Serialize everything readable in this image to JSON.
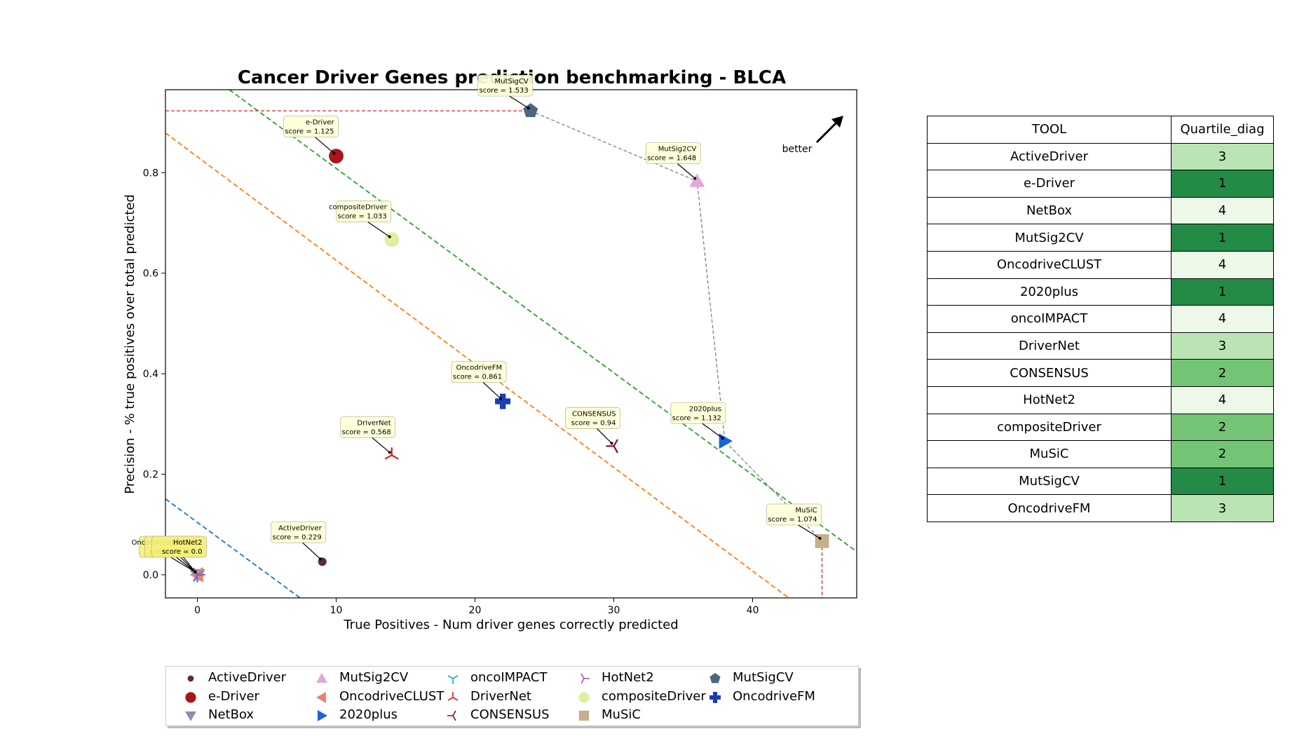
{
  "chart_data": {
    "type": "scatter",
    "title": "Cancer Driver Genes prediction benchmarking - BLCA",
    "xlabel": "True Positives - Num driver genes correctly predicted",
    "ylabel": "Precision - % true positives over total predicted",
    "xlim": [
      -2.3,
      47.5
    ],
    "ylim": [
      -0.046,
      0.965
    ],
    "xticks": [
      0,
      10,
      20,
      30,
      40
    ],
    "yticks": [
      0.0,
      0.2,
      0.4,
      0.6,
      0.8
    ],
    "better_label": "better",
    "grid": false,
    "legend_placement": "below plot",
    "points": [
      {
        "name": "ActiveDriver",
        "x": 9,
        "y": 0.026,
        "score_label": "score = 0.229",
        "marker": "circle-small",
        "color": "#5a2a46"
      },
      {
        "name": "e-Driver",
        "x": 10,
        "y": 0.833,
        "score_label": "score = 1.125",
        "marker": "circle",
        "color": "#a8161b"
      },
      {
        "name": "NetBox",
        "x": 0,
        "y": 0.0,
        "score_label": "score = 0.0",
        "marker": "triangle-down",
        "color": "#8c8fb0"
      },
      {
        "name": "MutSig2CV",
        "x": 36,
        "y": 0.783,
        "score_label": "score = 1.648",
        "marker": "triangle-up",
        "color": "#e6a6d9"
      },
      {
        "name": "OncodriveCLUST",
        "x": 0,
        "y": 0.0,
        "score_label": "score = 0.0",
        "marker": "triangle-left",
        "color": "#f08070"
      },
      {
        "name": "2020plus",
        "x": 38,
        "y": 0.266,
        "score_label": "score = 1.132",
        "marker": "triangle-right",
        "color": "#1864dc"
      },
      {
        "name": "oncoIMPACT",
        "x": 0,
        "y": 0.0,
        "score_label": "score = 0.0",
        "marker": "tri-down",
        "color": "#18b0b0"
      },
      {
        "name": "DriverNet",
        "x": 14,
        "y": 0.238,
        "score_label": "score = 0.568",
        "marker": "tri-up",
        "color": "#d62020"
      },
      {
        "name": "CONSENSUS",
        "x": 30,
        "y": 0.256,
        "score_label": "score = 0.94",
        "marker": "tri-left",
        "color": "#7a1030"
      },
      {
        "name": "HotNet2",
        "x": 0,
        "y": 0.0,
        "score_label": "score = 0.0",
        "marker": "tri-right",
        "color": "#a050c0"
      },
      {
        "name": "compositeDriver",
        "x": 14,
        "y": 0.667,
        "score_label": "score = 1.033",
        "marker": "circle",
        "color": "#dcf0a0"
      },
      {
        "name": "MuSiC",
        "x": 45,
        "y": 0.067,
        "score_label": "score = 1.074",
        "marker": "square",
        "color": "#c4b08c"
      },
      {
        "name": "MutSigCV",
        "x": 24,
        "y": 0.923,
        "score_label": "score = 1.533",
        "marker": "pentagon",
        "color": "#4a6680"
      },
      {
        "name": "OncodriveFM",
        "x": 22,
        "y": 0.345,
        "score_label": "score = 0.861",
        "marker": "plus",
        "color": "#1c3cb4"
      }
    ],
    "pareto_front": [
      [
        24,
        0.923
      ],
      [
        36,
        0.783
      ],
      [
        38,
        0.266
      ],
      [
        45,
        0.067
      ]
    ],
    "pareto_color": "#808080",
    "diagonal_lines": [
      {
        "x0": -2.3,
        "y0": 0.151,
        "x1": 7.4,
        "y1": -0.046,
        "color": "#1f77b4"
      },
      {
        "x0": -2.3,
        "y0": 0.879,
        "x1": 42.6,
        "y1": -0.046,
        "color": "#ff7f0e"
      },
      {
        "x0": 2.3,
        "y0": 0.965,
        "x1": 47.5,
        "y1": 0.046,
        "color": "#2ca02c"
      }
    ],
    "guide_lines_color": "#d62728"
  },
  "table": {
    "headers": [
      "TOOL",
      "Quartile_diag"
    ],
    "rows": [
      {
        "tool": "ActiveDriver",
        "quartile": "3",
        "color": "#bbe4b5"
      },
      {
        "tool": "e-Driver",
        "quartile": "1",
        "color": "#238b45"
      },
      {
        "tool": "NetBox",
        "quartile": "4",
        "color": "#edf8e9"
      },
      {
        "tool": "MutSig2CV",
        "quartile": "1",
        "color": "#238b45"
      },
      {
        "tool": "OncodriveCLUST",
        "quartile": "4",
        "color": "#edf8e9"
      },
      {
        "tool": "2020plus",
        "quartile": "1",
        "color": "#238b45"
      },
      {
        "tool": "oncoIMPACT",
        "quartile": "4",
        "color": "#edf8e9"
      },
      {
        "tool": "DriverNet",
        "quartile": "3",
        "color": "#bbe4b5"
      },
      {
        "tool": "CONSENSUS",
        "quartile": "2",
        "color": "#74c476"
      },
      {
        "tool": "HotNet2",
        "quartile": "4",
        "color": "#edf8e9"
      },
      {
        "tool": "compositeDriver",
        "quartile": "2",
        "color": "#74c476"
      },
      {
        "tool": "MuSiC",
        "quartile": "2",
        "color": "#74c476"
      },
      {
        "tool": "MutSigCV",
        "quartile": "1",
        "color": "#238b45"
      },
      {
        "tool": "OncodriveFM",
        "quartile": "3",
        "color": "#bbe4b5"
      }
    ]
  }
}
